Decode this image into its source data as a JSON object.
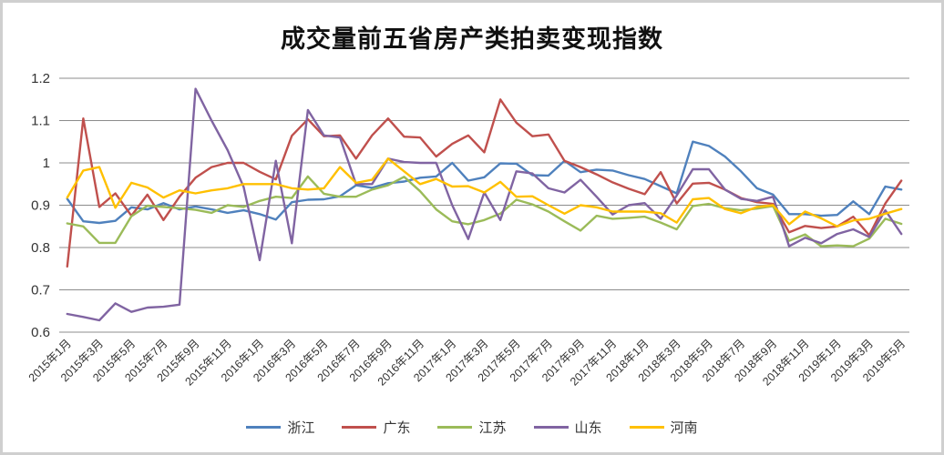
{
  "page": {
    "background": "#ffffff",
    "frame_color": "#cfcfcf"
  },
  "chart_data": {
    "type": "line",
    "title": "成交量前五省房产类拍卖变现指数",
    "xlabel": "",
    "ylabel": "",
    "ylim": [
      0.6,
      1.2
    ],
    "y_ticks": [
      "1.2",
      "1.1",
      "1",
      "0.9",
      "0.8",
      "0.7",
      "0.6"
    ],
    "grid": "horizontal",
    "gridline_color": "#8c8c8c",
    "axis_text_color": "#333333",
    "legend_position": "bottom",
    "x_tick_step": 2,
    "x": [
      "2015年1月",
      "2015年2月",
      "2015年3月",
      "2015年4月",
      "2015年5月",
      "2015年6月",
      "2015年7月",
      "2015年8月",
      "2015年9月",
      "2015年10月",
      "2015年11月",
      "2015年12月",
      "2016年1月",
      "2016年2月",
      "2016年3月",
      "2016年4月",
      "2016年5月",
      "2016年6月",
      "2016年7月",
      "2016年8月",
      "2016年9月",
      "2016年10月",
      "2016年11月",
      "2016年12月",
      "2017年1月",
      "2017年2月",
      "2017年3月",
      "2017年4月",
      "2017年5月",
      "2017年6月",
      "2017年7月",
      "2017年8月",
      "2017年9月",
      "2017年10月",
      "2017年11月",
      "2017年12月",
      "2018年1月",
      "2018年2月",
      "2018年3月",
      "2018年4月",
      "2018年5月",
      "2018年6月",
      "2018年7月",
      "2018年8月",
      "2018年9月",
      "2018年10月",
      "2018年11月",
      "2018年12月",
      "2019年1月",
      "2019年2月",
      "2019年3月",
      "2019年4月",
      "2019年5月"
    ],
    "series": [
      {
        "name": "浙江",
        "color": "#4F81BD",
        "values": [
          0.915,
          0.862,
          0.858,
          0.863,
          0.895,
          0.89,
          0.905,
          0.89,
          0.897,
          0.89,
          0.882,
          0.888,
          0.879,
          0.866,
          0.907,
          0.913,
          0.914,
          0.921,
          0.947,
          0.941,
          0.952,
          0.956,
          0.965,
          0.968,
          1.0,
          0.958,
          0.966,
          0.999,
          0.998,
          0.971,
          0.97,
          1.005,
          0.978,
          0.984,
          0.982,
          0.971,
          0.962,
          0.945,
          0.928,
          1.05,
          1.04,
          1.015,
          0.98,
          0.94,
          0.925,
          0.879,
          0.879,
          0.875,
          0.877,
          0.909,
          0.879,
          0.944,
          0.937
        ]
      },
      {
        "name": "广东",
        "color": "#C0504D",
        "values": [
          0.755,
          1.105,
          0.896,
          0.928,
          0.875,
          0.925,
          0.865,
          0.92,
          0.965,
          0.99,
          1.0,
          1.0,
          0.979,
          0.961,
          1.064,
          1.103,
          1.063,
          1.065,
          1.01,
          1.065,
          1.105,
          1.062,
          1.06,
          1.015,
          1.045,
          1.065,
          1.025,
          1.15,
          1.095,
          1.063,
          1.067,
          1.005,
          0.99,
          0.973,
          0.954,
          0.939,
          0.926,
          0.978,
          0.904,
          0.951,
          0.953,
          0.937,
          0.917,
          0.907,
          0.903,
          0.836,
          0.851,
          0.846,
          0.85,
          0.873,
          0.829,
          0.904,
          0.958
        ]
      },
      {
        "name": "江苏",
        "color": "#9BBB59",
        "values": [
          0.857,
          0.85,
          0.811,
          0.811,
          0.874,
          0.899,
          0.896,
          0.893,
          0.889,
          0.882,
          0.9,
          0.896,
          0.91,
          0.92,
          0.917,
          0.968,
          0.927,
          0.92,
          0.92,
          0.937,
          0.947,
          0.967,
          0.933,
          0.89,
          0.862,
          0.855,
          0.865,
          0.88,
          0.913,
          0.902,
          0.885,
          0.862,
          0.84,
          0.875,
          0.868,
          0.87,
          0.873,
          0.859,
          0.843,
          0.898,
          0.903,
          0.893,
          0.888,
          0.892,
          0.898,
          0.816,
          0.831,
          0.803,
          0.805,
          0.803,
          0.821,
          0.868,
          0.856
        ]
      },
      {
        "name": "山东",
        "color": "#8064A2",
        "values": [
          0.643,
          0.636,
          0.628,
          0.668,
          0.648,
          0.658,
          0.66,
          0.665,
          1.175,
          1.1,
          1.03,
          0.943,
          0.77,
          1.005,
          0.81,
          1.125,
          1.065,
          1.06,
          0.95,
          0.95,
          1.01,
          1.002,
          1.0,
          1.0,
          0.9,
          0.82,
          0.93,
          0.865,
          0.98,
          0.975,
          0.94,
          0.93,
          0.96,
          0.92,
          0.878,
          0.9,
          0.905,
          0.868,
          0.923,
          0.985,
          0.985,
          0.937,
          0.915,
          0.91,
          0.92,
          0.803,
          0.823,
          0.81,
          0.832,
          0.843,
          0.825,
          0.888,
          0.832
        ]
      },
      {
        "name": "河南",
        "color": "#FFC000",
        "values": [
          0.918,
          0.982,
          0.99,
          0.894,
          0.953,
          0.942,
          0.918,
          0.935,
          0.928,
          0.935,
          0.94,
          0.95,
          0.95,
          0.95,
          0.94,
          0.937,
          0.94,
          0.99,
          0.953,
          0.96,
          1.01,
          0.98,
          0.95,
          0.962,
          0.944,
          0.945,
          0.93,
          0.955,
          0.92,
          0.921,
          0.9,
          0.88,
          0.9,
          0.895,
          0.885,
          0.885,
          0.885,
          0.881,
          0.859,
          0.914,
          0.917,
          0.891,
          0.881,
          0.896,
          0.9,
          0.855,
          0.885,
          0.869,
          0.85,
          0.864,
          0.868,
          0.88,
          0.891
        ]
      }
    ]
  }
}
